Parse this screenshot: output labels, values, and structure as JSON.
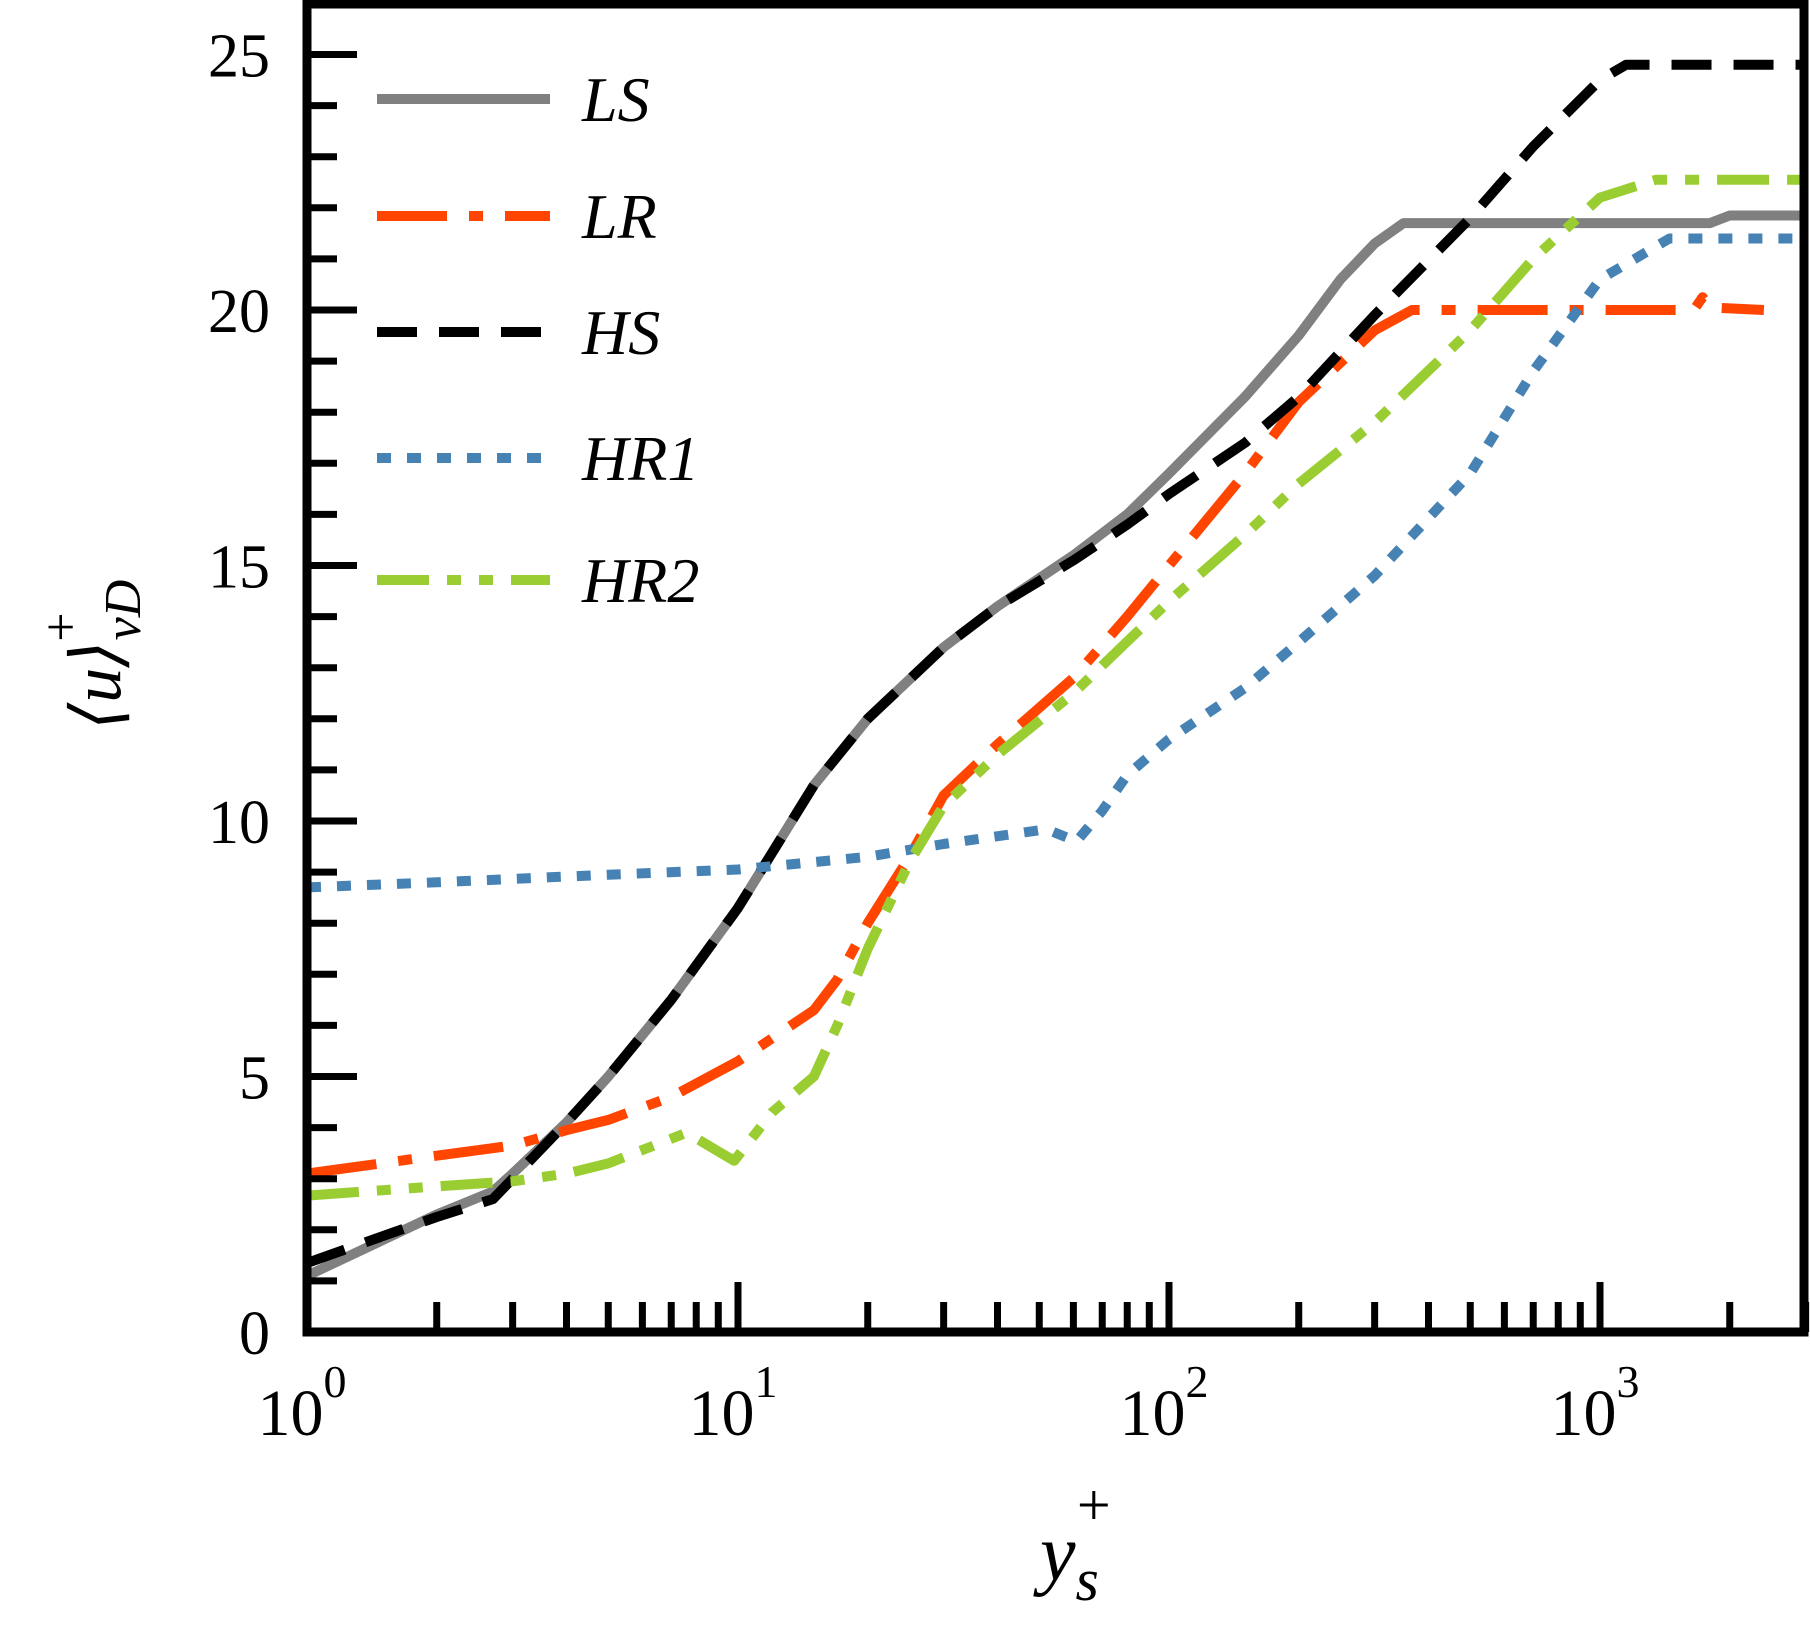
{
  "chart_data": {
    "type": "line",
    "title": "",
    "xlabel": "y_s^+",
    "ylabel": "⟨u⟩^+_vD",
    "xscale": "log",
    "xlim": [
      1,
      3000
    ],
    "ylim": [
      0,
      25
    ],
    "x_ticks": [
      {
        "value": 1,
        "base": "10",
        "exp": "0"
      },
      {
        "value": 10,
        "base": "10",
        "exp": "1"
      },
      {
        "value": 100,
        "base": "10",
        "exp": "2"
      },
      {
        "value": 1000,
        "base": "10",
        "exp": "3"
      }
    ],
    "y_ticks": [
      0,
      5,
      10,
      15,
      20,
      25
    ],
    "y_minor_step": 1,
    "grid": false,
    "legend_position": "upper left",
    "series": [
      {
        "name": "LS",
        "label": "𝓛𝓢",
        "color": "#808080",
        "dash": "solid",
        "points": [
          [
            1,
            1.1
          ],
          [
            1.5,
            1.8
          ],
          [
            2,
            2.3
          ],
          [
            2.7,
            2.75
          ],
          [
            3,
            3.1
          ],
          [
            4,
            4.1
          ],
          [
            5,
            5.0
          ],
          [
            7,
            6.5
          ],
          [
            10,
            8.3
          ],
          [
            15,
            10.7
          ],
          [
            20,
            12.0
          ],
          [
            30,
            13.4
          ],
          [
            40,
            14.2
          ],
          [
            60,
            15.2
          ],
          [
            80,
            16.0
          ],
          [
            100,
            16.8
          ],
          [
            150,
            18.3
          ],
          [
            200,
            19.5
          ],
          [
            250,
            20.6
          ],
          [
            300,
            21.3
          ],
          [
            350,
            21.7
          ],
          [
            500,
            21.7
          ],
          [
            1000,
            21.7
          ],
          [
            1800,
            21.7
          ],
          [
            2000,
            21.85
          ],
          [
            3000,
            21.85
          ]
        ]
      },
      {
        "name": "LR",
        "label": "𝓛𝓡",
        "color": "#FF4500",
        "dash": "dashdot",
        "points": [
          [
            1,
            3.1
          ],
          [
            2,
            3.45
          ],
          [
            3,
            3.65
          ],
          [
            4,
            3.95
          ],
          [
            5,
            4.15
          ],
          [
            7,
            4.6
          ],
          [
            10,
            5.3
          ],
          [
            15,
            6.3
          ],
          [
            17,
            6.9
          ],
          [
            20,
            8.0
          ],
          [
            25,
            9.3
          ],
          [
            30,
            10.5
          ],
          [
            40,
            11.5
          ],
          [
            60,
            12.8
          ],
          [
            80,
            14.0
          ],
          [
            100,
            15.0
          ],
          [
            150,
            16.8
          ],
          [
            200,
            18.2
          ],
          [
            300,
            19.6
          ],
          [
            366,
            20.0
          ],
          [
            1500,
            20.0
          ],
          [
            1650,
            20.0
          ],
          [
            1730,
            20.25
          ],
          [
            1800,
            20.05
          ],
          [
            2400,
            20.0
          ]
        ]
      },
      {
        "name": "HS",
        "label": "𝓗𝓢",
        "color": "#000000",
        "dash": "dashed",
        "points": [
          [
            1,
            1.35
          ],
          [
            2,
            2.25
          ],
          [
            2.7,
            2.6
          ],
          [
            3,
            3.0
          ],
          [
            4,
            4.1
          ],
          [
            5,
            5.0
          ],
          [
            7,
            6.5
          ],
          [
            10,
            8.3
          ],
          [
            15,
            10.7
          ],
          [
            20,
            12.0
          ],
          [
            30,
            13.4
          ],
          [
            40,
            14.2
          ],
          [
            60,
            15.1
          ],
          [
            80,
            15.8
          ],
          [
            100,
            16.4
          ],
          [
            150,
            17.4
          ],
          [
            200,
            18.3
          ],
          [
            300,
            19.9
          ],
          [
            500,
            21.8
          ],
          [
            700,
            23.2
          ],
          [
            1000,
            24.5
          ],
          [
            1150,
            24.8
          ],
          [
            3000,
            24.8
          ]
        ]
      },
      {
        "name": "HR1",
        "label": "𝓗𝓡1",
        "color": "#4682B4",
        "dash": "dotted",
        "points": [
          [
            1,
            8.7
          ],
          [
            2,
            8.8
          ],
          [
            5,
            8.95
          ],
          [
            10,
            9.05
          ],
          [
            20,
            9.3
          ],
          [
            30,
            9.55
          ],
          [
            52,
            9.84
          ],
          [
            61,
            9.6
          ],
          [
            70,
            10.2
          ],
          [
            80,
            10.9
          ],
          [
            100,
            11.6
          ],
          [
            150,
            12.6
          ],
          [
            200,
            13.5
          ],
          [
            300,
            14.8
          ],
          [
            500,
            16.8
          ],
          [
            700,
            18.8
          ],
          [
            1000,
            20.6
          ],
          [
            1450,
            21.4
          ],
          [
            3000,
            21.4
          ]
        ]
      },
      {
        "name": "HR2",
        "label": "𝓗𝓡2",
        "color": "#9ACD32",
        "dash": "dashdotdot",
        "points": [
          [
            1,
            2.67
          ],
          [
            2,
            2.85
          ],
          [
            3,
            2.95
          ],
          [
            4,
            3.1
          ],
          [
            5,
            3.3
          ],
          [
            7.6,
            3.9
          ],
          [
            9.8,
            3.35
          ],
          [
            12,
            4.3
          ],
          [
            15,
            5.0
          ],
          [
            17,
            6.0
          ],
          [
            20,
            7.5
          ],
          [
            25,
            9.2
          ],
          [
            30,
            10.3
          ],
          [
            40,
            11.3
          ],
          [
            60,
            12.5
          ],
          [
            100,
            14.3
          ],
          [
            150,
            15.6
          ],
          [
            200,
            16.6
          ],
          [
            300,
            17.8
          ],
          [
            500,
            19.6
          ],
          [
            700,
            21.0
          ],
          [
            1000,
            22.2
          ],
          [
            1350,
            22.55
          ],
          [
            3000,
            22.55
          ]
        ]
      }
    ]
  },
  "legend": {
    "items": [
      {
        "text": "LS"
      },
      {
        "text": "LR"
      },
      {
        "text": "HS"
      },
      {
        "text": "HR1"
      },
      {
        "text": "HR2"
      }
    ]
  },
  "axes": {
    "x_label_main": "y",
    "x_label_sub": "s",
    "x_label_sup": "+",
    "y_label_main": "⟨u⟩",
    "y_label_sub": "vD",
    "y_label_sup": "+"
  }
}
